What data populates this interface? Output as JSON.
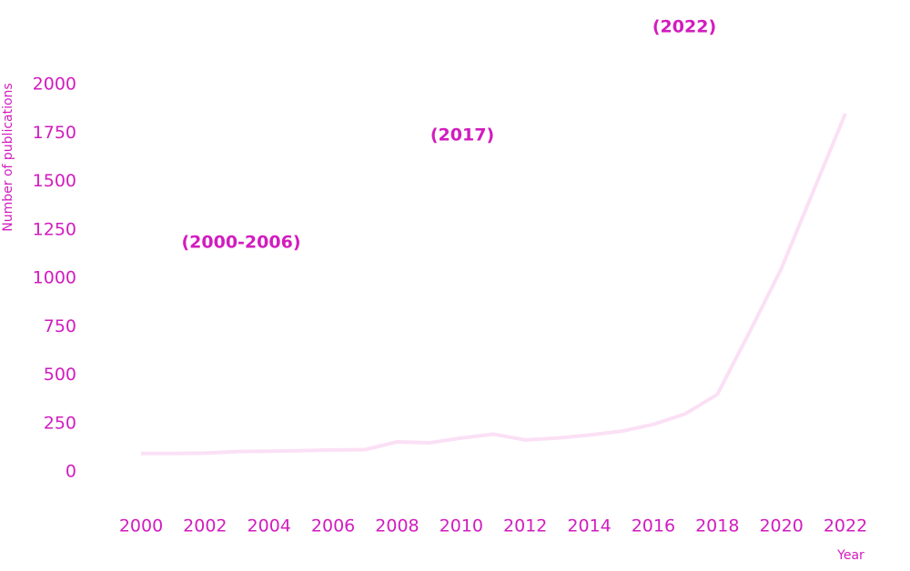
{
  "chart_data": {
    "type": "line",
    "y_label": "Number of publications",
    "x_label": "Year",
    "annotations": [
      "(2000-2006)",
      "(2017)",
      "(2022)"
    ],
    "x": [
      2000,
      2001,
      2002,
      2003,
      2004,
      2005,
      2006,
      2007,
      2008,
      2009,
      2010,
      2011,
      2012,
      2013,
      2014,
      2015,
      2016,
      2017,
      2018,
      2019,
      2020,
      2021,
      2022
    ],
    "series": [
      {
        "color": "#fbe0f5",
        "values": [
          95,
          95,
          97,
          105,
          107,
          110,
          113,
          115,
          155,
          150,
          175,
          195,
          165,
          175,
          190,
          210,
          245,
          300,
          400,
          720,
          1050,
          1450,
          1850
        ]
      }
    ],
    "xlim": [
      2000,
      2022
    ],
    "xticks": [
      2000,
      2002,
      2004,
      2006,
      2008,
      2010,
      2012,
      2014,
      2016,
      2018,
      2020,
      2022
    ],
    "ylim": [
      0,
      2000
    ],
    "yticks": [
      0,
      250,
      500,
      750,
      1000,
      1250,
      1500,
      1750,
      2000
    ],
    "grid": false,
    "text_color": "#d21cbf"
  }
}
